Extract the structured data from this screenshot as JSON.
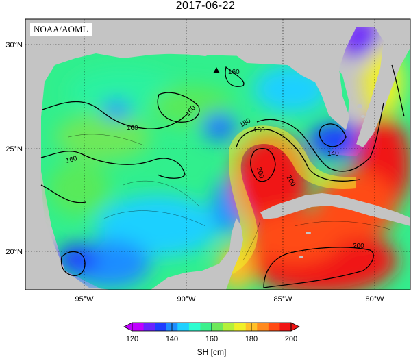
{
  "title": "2017-06-22",
  "agency": "NOAA/AOML",
  "lat_labels": [
    "30°N",
    "25°N",
    "20°N"
  ],
  "lon_labels": [
    "95°W",
    "90°W",
    "85°W",
    "80°W"
  ],
  "contour_labels": [
    "160",
    "160",
    "160",
    "160",
    "180",
    "180",
    "140",
    "200",
    "200",
    "200"
  ],
  "colorbar": {
    "ticks": [
      "120",
      "140",
      "160",
      "180",
      "200"
    ],
    "label": "SH [cm]",
    "colors": [
      "#c000ff",
      "#6a22ff",
      "#1f3dff",
      "#1f8dff",
      "#1fd0ff",
      "#2dfcd0",
      "#3cf08c",
      "#6ee85a",
      "#b4f03a",
      "#f0f028",
      "#ffc028",
      "#ff8a1e",
      "#ff4b14",
      "#f01414"
    ]
  },
  "marker": "triangle-icon"
}
